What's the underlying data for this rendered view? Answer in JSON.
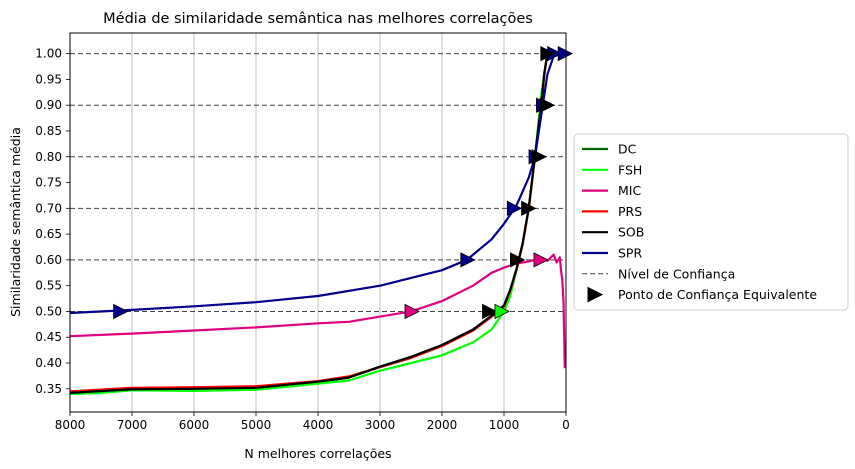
{
  "chart_data": {
    "type": "line",
    "title": "Média de similaridade semântica nas melhores correlações",
    "xlabel": "N melhores correlações",
    "ylabel": "Similaridade semântica média",
    "xlim": [
      8000,
      0
    ],
    "ylim": [
      0.305,
      1.04
    ],
    "x_ticks": [
      8000,
      7000,
      6000,
      5000,
      4000,
      3000,
      2000,
      1000,
      0
    ],
    "y_ticks": [
      0.35,
      0.4,
      0.45,
      0.5,
      0.55,
      0.6,
      0.65,
      0.7,
      0.75,
      0.8,
      0.85,
      0.9,
      0.95,
      1.0
    ],
    "x_grid": true,
    "confidence_levels": [
      0.5,
      0.6,
      0.7,
      0.8,
      0.9,
      1.0
    ],
    "legend_position": "right, outside plot",
    "series": [
      {
        "name": "DC",
        "color": "#006400",
        "x": [
          8000,
          7000,
          6000,
          5000,
          4000,
          3500,
          3000,
          2500,
          2000,
          1500,
          1200,
          1000,
          900,
          800,
          700,
          600,
          500,
          400,
          350,
          300
        ],
        "y": [
          0.343,
          0.35,
          0.351,
          0.352,
          0.362,
          0.372,
          0.392,
          0.41,
          0.433,
          0.463,
          0.49,
          0.51,
          0.54,
          0.58,
          0.63,
          0.7,
          0.8,
          0.9,
          0.96,
          1.0
        ]
      },
      {
        "name": "FSH",
        "color": "#00ff00",
        "x": [
          8000,
          7500,
          7000,
          6000,
          5000,
          4000,
          3500,
          3000,
          2500,
          2000,
          1500,
          1200,
          1000,
          900,
          800,
          700,
          600,
          500,
          450,
          400,
          300
        ],
        "y": [
          0.34,
          0.342,
          0.347,
          0.346,
          0.348,
          0.36,
          0.366,
          0.385,
          0.4,
          0.415,
          0.44,
          0.465,
          0.5,
          0.53,
          0.58,
          0.63,
          0.7,
          0.8,
          0.86,
          0.92,
          1.0
        ]
      },
      {
        "name": "MIC",
        "color": "#e0007f",
        "x": [
          8000,
          7000,
          6000,
          5000,
          4000,
          3500,
          3000,
          2500,
          2000,
          1500,
          1200,
          1000,
          800,
          600,
          400,
          300,
          200,
          150,
          100,
          80,
          60,
          40,
          20
        ],
        "y": [
          0.452,
          0.457,
          0.463,
          0.469,
          0.477,
          0.48,
          0.49,
          0.5,
          0.52,
          0.55,
          0.575,
          0.585,
          0.593,
          0.597,
          0.603,
          0.598,
          0.61,
          0.595,
          0.605,
          0.58,
          0.56,
          0.52,
          0.39
        ]
      },
      {
        "name": "PRS",
        "color": "#ff0000",
        "x": [
          8000,
          7000,
          6000,
          5000,
          4000,
          3500,
          3000,
          2500,
          2000,
          1500,
          1200,
          1000,
          900,
          800,
          700,
          600,
          500,
          400,
          350,
          300
        ],
        "y": [
          0.345,
          0.352,
          0.353,
          0.355,
          0.365,
          0.374,
          0.392,
          0.41,
          0.433,
          0.463,
          0.49,
          0.51,
          0.54,
          0.58,
          0.63,
          0.7,
          0.8,
          0.9,
          0.96,
          1.0
        ]
      },
      {
        "name": "SOB",
        "color": "#000000",
        "x": [
          8000,
          7000,
          6000,
          5000,
          4000,
          3500,
          3000,
          2500,
          2000,
          1500,
          1200,
          1000,
          900,
          800,
          700,
          600,
          500,
          400,
          350,
          300
        ],
        "y": [
          0.342,
          0.349,
          0.35,
          0.352,
          0.364,
          0.372,
          0.393,
          0.412,
          0.435,
          0.465,
          0.492,
          0.512,
          0.542,
          0.582,
          0.632,
          0.702,
          0.802,
          0.902,
          0.962,
          1.0
        ]
      },
      {
        "name": "SPR",
        "color": "#00008b",
        "x": [
          8000,
          7000,
          6000,
          5000,
          4000,
          3000,
          2500,
          2000,
          1600,
          1200,
          1000,
          800,
          600,
          500,
          400,
          300,
          200,
          100,
          0
        ],
        "y": [
          0.497,
          0.503,
          0.51,
          0.518,
          0.53,
          0.55,
          0.565,
          0.58,
          0.6,
          0.64,
          0.67,
          0.705,
          0.76,
          0.8,
          0.88,
          0.96,
          0.995,
          1.0,
          1.0
        ]
      }
    ],
    "equivalent_points": [
      {
        "series": "SPR",
        "x": 7200,
        "y": 0.5
      },
      {
        "series": "MIC",
        "x": 2500,
        "y": 0.5
      },
      {
        "series": "SOB",
        "x": 1250,
        "y": 0.5
      },
      {
        "series": "FSH",
        "x": 1050,
        "y": 0.5
      },
      {
        "series": "SPR",
        "x": 1600,
        "y": 0.6
      },
      {
        "series": "SOB",
        "x": 800,
        "y": 0.6
      },
      {
        "series": "MIC",
        "x": 420,
        "y": 0.6
      },
      {
        "series": "SPR",
        "x": 850,
        "y": 0.7
      },
      {
        "series": "SOB",
        "x": 620,
        "y": 0.7
      },
      {
        "series": "SPR",
        "x": 500,
        "y": 0.8
      },
      {
        "series": "SOB",
        "x": 450,
        "y": 0.8
      },
      {
        "series": "SPR",
        "x": 380,
        "y": 0.9
      },
      {
        "series": "SOB",
        "x": 320,
        "y": 0.9
      },
      {
        "series": "SPR",
        "x": 200,
        "y": 1.0
      },
      {
        "series": "SOB",
        "x": 310,
        "y": 1.0
      },
      {
        "series": "SPR",
        "x": 30,
        "y": 1.0
      }
    ],
    "legend": {
      "series_labels": [
        "DC",
        "FSH",
        "MIC",
        "PRS",
        "SOB",
        "SPR"
      ],
      "confidence_label": "Nível de Confiança",
      "point_label": "Ponto de Confiança Equivalente"
    }
  }
}
